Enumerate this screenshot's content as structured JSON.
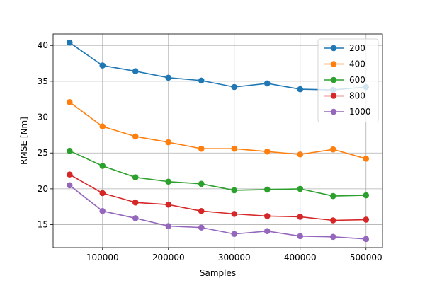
{
  "chart_data": {
    "type": "line",
    "title": "",
    "xlabel": "Samples",
    "ylabel": "RMSE [Nm]",
    "x": [
      50000,
      100000,
      150000,
      200000,
      250000,
      300000,
      350000,
      400000,
      450000,
      500000
    ],
    "xlim": [
      25000,
      525000
    ],
    "ylim": [
      11.8,
      41.6
    ],
    "xticks": [
      100000,
      200000,
      300000,
      400000,
      500000
    ],
    "xtick_labels": [
      "100000",
      "200000",
      "300000",
      "400000",
      "500000"
    ],
    "yticks": [
      15,
      20,
      25,
      30,
      35,
      40
    ],
    "ytick_labels": [
      "15",
      "20",
      "25",
      "30",
      "35",
      "40"
    ],
    "grid": true,
    "legend_position": "top-right",
    "series": [
      {
        "name": "200",
        "color": "#1f77b4",
        "values": [
          40.4,
          37.2,
          36.4,
          35.5,
          35.1,
          34.2,
          34.7,
          33.9,
          33.8,
          34.2
        ]
      },
      {
        "name": "400",
        "color": "#ff7f0e",
        "values": [
          32.1,
          28.7,
          27.3,
          26.5,
          25.6,
          25.6,
          25.2,
          24.8,
          25.5,
          24.2
        ]
      },
      {
        "name": "600",
        "color": "#2ca02c",
        "values": [
          25.3,
          23.2,
          21.6,
          21.0,
          20.7,
          19.8,
          19.9,
          20.0,
          19.0,
          19.1
        ]
      },
      {
        "name": "800",
        "color": "#d62728",
        "values": [
          22.0,
          19.4,
          18.1,
          17.8,
          16.9,
          16.5,
          16.2,
          16.1,
          15.6,
          15.7
        ]
      },
      {
        "name": "1000",
        "color": "#9467bd",
        "values": [
          20.5,
          16.9,
          15.9,
          14.8,
          14.6,
          13.7,
          14.1,
          13.4,
          13.3,
          13.0
        ]
      }
    ]
  }
}
